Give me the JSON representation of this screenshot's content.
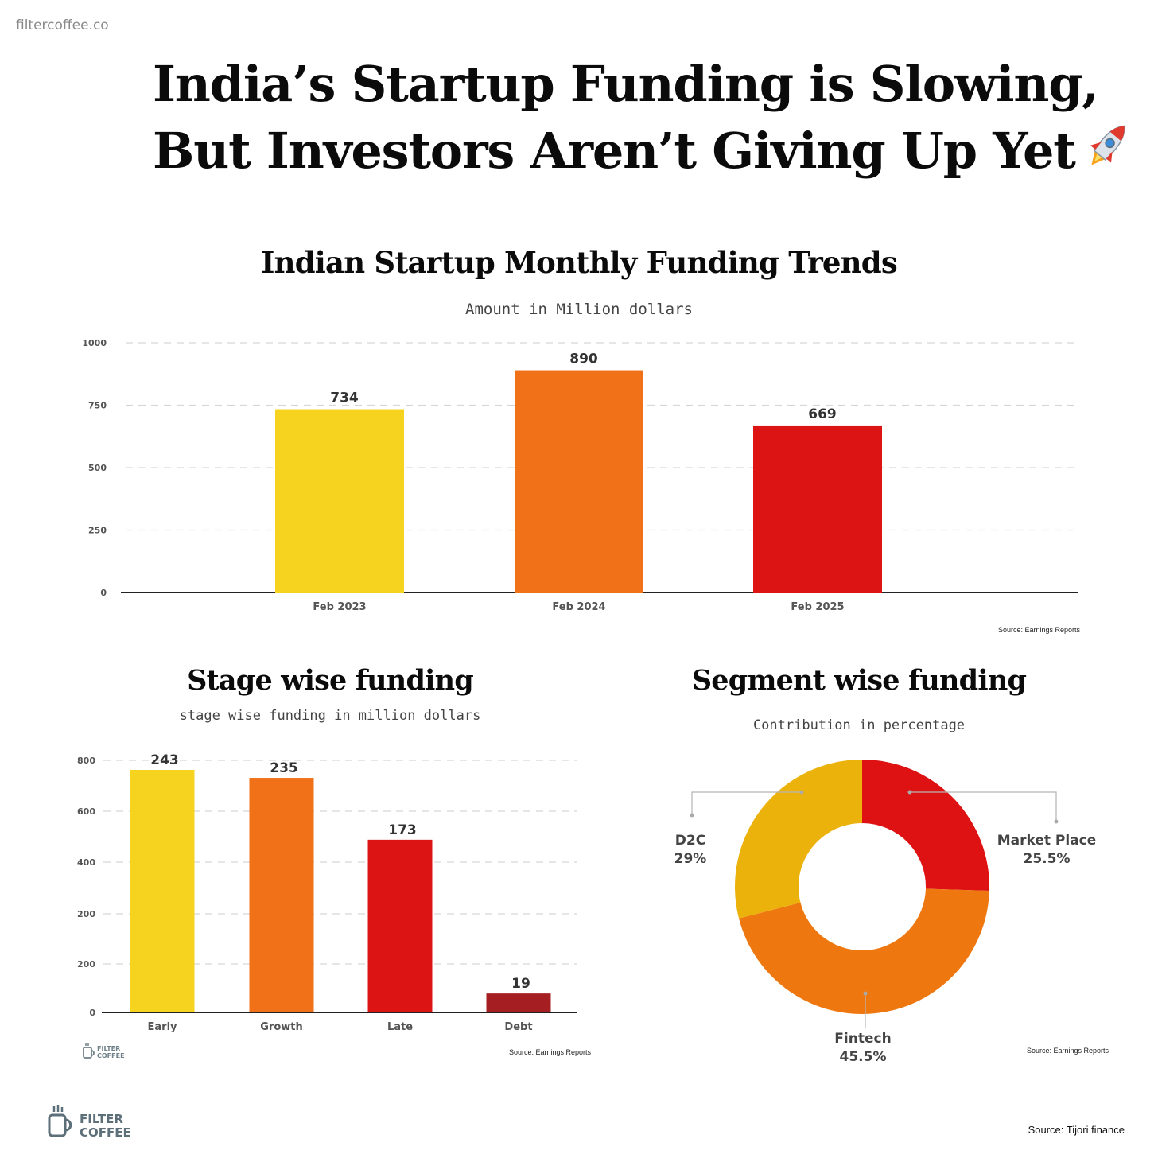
{
  "brand": {
    "url": "filtercoffee.co",
    "logo_line1": "FILTER",
    "logo_line2": "COFFEE"
  },
  "headline": {
    "line1": "India’s Startup Funding is Slowing,",
    "line2": "But Investors Aren’t Giving Up Yet",
    "emoji": "rocket-icon"
  },
  "footer_source": "Source: Tijori finance",
  "colors": {
    "yellow": "#F5D31E",
    "orange": "#F07117",
    "red": "#DC1414",
    "darkred": "#A51F22",
    "donut_yellow": "#ECB20C",
    "donut_orange": "#EE780F",
    "donut_red": "#DE1212"
  },
  "chart_data": [
    {
      "type": "bar",
      "title": "Indian Startup Monthly Funding Trends",
      "subtitle": "Amount in Million dollars",
      "categories": [
        "Feb 2023",
        "Feb 2024",
        "Feb 2025"
      ],
      "values": [
        734,
        890,
        669
      ],
      "data_labels": [
        "734",
        "890",
        "669"
      ],
      "yticks": [
        "1000",
        "750",
        "500",
        "250",
        "0"
      ],
      "ylim": [
        0,
        1000
      ],
      "grid": true,
      "source": "Source: Earnings Reports"
    },
    {
      "type": "bar",
      "title": "Stage wise funding",
      "subtitle": "stage wise funding in million dollars",
      "categories": [
        "Early",
        "Growth",
        "Late",
        "Debt"
      ],
      "values": [
        243,
        235,
        173,
        19
      ],
      "data_labels": [
        "243",
        "235",
        "173",
        "19"
      ],
      "yticks": [
        "800",
        "600",
        "400",
        "200",
        "200",
        "0"
      ],
      "grid": true,
      "source": "Source: Earnings Reports"
    },
    {
      "type": "pie",
      "donut": true,
      "title": "Segment wise funding",
      "subtitle": "Contribution in percentage",
      "slices": [
        {
          "label": "Market Place",
          "value": 25.5,
          "display": "25.5%"
        },
        {
          "label": "Fintech",
          "value": 45.5,
          "display": "45.5%"
        },
        {
          "label": "D2C",
          "value": 29,
          "display": "29%"
        }
      ],
      "source": "Source: Earnings Reports"
    }
  ]
}
